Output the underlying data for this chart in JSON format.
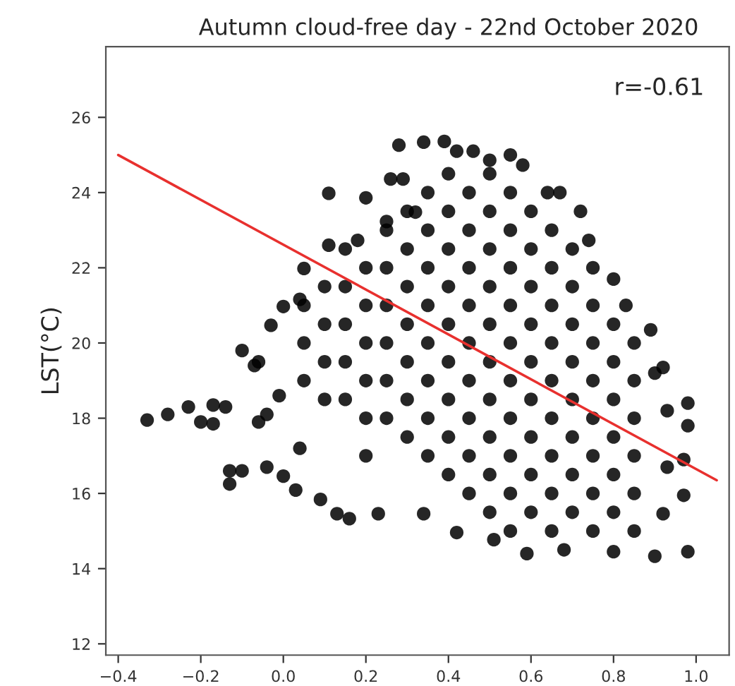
{
  "chart_data": {
    "type": "scatter",
    "title": "Autumn cloud-free day - 22nd October 2020",
    "ylabel": "LST(°C)",
    "annotations": [
      "r=-0.61"
    ],
    "xlim": [
      -0.43,
      1.08
    ],
    "ylim": [
      11.7,
      27.88
    ],
    "xticks": [
      {
        "value": -0.4,
        "label": "−0.4"
      },
      {
        "value": -0.2,
        "label": "−0.2"
      },
      {
        "value": 0,
        "label": "0.0"
      },
      0.2,
      0.4,
      0.6,
      0.8,
      {
        "value": 1,
        "label": "1.0"
      }
    ],
    "yticks": [
      12,
      14,
      16,
      18,
      20,
      22,
      24,
      26
    ],
    "grid": false,
    "series": [
      {
        "color": "#000000",
        "marker": "circle",
        "x": [
          -0.33,
          -0.28,
          -0.23,
          -0.2,
          -0.17,
          -0.17,
          -0.14,
          -0.13,
          -0.13,
          -0.1,
          -0.1,
          -0.07,
          -0.06,
          -0.06,
          -0.04,
          -0.04,
          -0.01,
          0.98,
          0.98,
          0.98,
          0.97,
          0.97,
          0.92,
          0.28,
          0.34,
          0.39,
          0.42,
          0.46,
          0.5,
          0.55,
          0.58,
          0.64,
          0.67,
          0.72,
          0.74,
          0.8,
          0.83,
          0.89,
          0.9,
          0.93,
          0.93,
          0.92,
          0.9,
          0.8,
          0.68,
          0.59,
          0.51,
          0.42,
          0.34,
          0.23,
          0.16,
          0.13,
          0.09,
          0.03,
          0.0,
          0.04,
          -0.03,
          0.0,
          0.04,
          0.05,
          0.11,
          0.11,
          0.2,
          0.26,
          0.29,
          0.18,
          0.25,
          0.32,
          0.05,
          0.05,
          0.05,
          0.1,
          0.1,
          0.1,
          0.1,
          0.15,
          0.15,
          0.15,
          0.15,
          0.15,
          0.2,
          0.2,
          0.2,
          0.2,
          0.2,
          0.2,
          0.25,
          0.25,
          0.25,
          0.25,
          0.25,
          0.25,
          0.3,
          0.3,
          0.3,
          0.3,
          0.3,
          0.3,
          0.3,
          0.35,
          0.35,
          0.35,
          0.35,
          0.35,
          0.35,
          0.35,
          0.35,
          0.4,
          0.4,
          0.4,
          0.4,
          0.4,
          0.4,
          0.4,
          0.4,
          0.4,
          0.45,
          0.45,
          0.45,
          0.45,
          0.45,
          0.45,
          0.45,
          0.45,
          0.45,
          0.5,
          0.5,
          0.5,
          0.5,
          0.5,
          0.5,
          0.5,
          0.5,
          0.5,
          0.5,
          0.55,
          0.55,
          0.55,
          0.55,
          0.55,
          0.55,
          0.55,
          0.55,
          0.55,
          0.55,
          0.6,
          0.6,
          0.6,
          0.6,
          0.6,
          0.6,
          0.6,
          0.6,
          0.6,
          0.65,
          0.65,
          0.65,
          0.65,
          0.65,
          0.65,
          0.65,
          0.65,
          0.65,
          0.7,
          0.7,
          0.7,
          0.7,
          0.7,
          0.7,
          0.7,
          0.7,
          0.75,
          0.75,
          0.75,
          0.75,
          0.75,
          0.75,
          0.75,
          0.75,
          0.8,
          0.8,
          0.8,
          0.8,
          0.8,
          0.8,
          0.85,
          0.85,
          0.85,
          0.85,
          0.85,
          0.85
        ],
        "values": [
          17.95,
          18.1,
          18.3,
          17.9,
          17.85,
          18.35,
          18.3,
          16.6,
          16.25,
          16.6,
          19.8,
          19.4,
          19.5,
          17.9,
          18.1,
          16.7,
          18.6,
          14.45,
          18.4,
          17.8,
          15.95,
          16.9,
          19.35,
          25.26,
          25.34,
          25.36,
          25.1,
          25.1,
          24.86,
          25.0,
          24.73,
          24.0,
          24.0,
          23.5,
          22.73,
          21.7,
          21.0,
          20.35,
          19.2,
          18.2,
          16.7,
          15.46,
          14.33,
          14.45,
          14.5,
          14.4,
          14.77,
          14.96,
          15.46,
          15.46,
          15.33,
          15.46,
          15.84,
          16.09,
          16.46,
          17.2,
          20.47,
          20.97,
          21.16,
          21.98,
          22.6,
          23.98,
          23.86,
          24.36,
          24.36,
          22.73,
          23.23,
          23.48,
          19,
          20,
          21,
          18.5,
          19.5,
          20.5,
          21.5,
          18.5,
          19.5,
          20.5,
          21.5,
          22.5,
          17,
          18,
          19,
          20,
          21,
          22,
          18,
          19,
          20,
          21,
          22,
          23,
          17.5,
          18.5,
          19.5,
          20.5,
          21.5,
          22.5,
          23.5,
          17,
          18,
          19,
          20,
          21,
          22,
          23,
          24,
          16.5,
          17.5,
          18.5,
          19.5,
          20.5,
          21.5,
          22.5,
          23.5,
          24.5,
          16,
          17,
          18,
          19,
          20,
          21,
          22,
          23,
          24,
          15.5,
          16.5,
          17.5,
          18.5,
          19.5,
          20.5,
          21.5,
          22.5,
          23.5,
          24.5,
          15,
          16,
          17,
          18,
          19,
          20,
          21,
          22,
          23,
          24,
          15.5,
          16.5,
          17.5,
          18.5,
          19.5,
          20.5,
          21.5,
          22.5,
          23.5,
          15,
          16,
          17,
          18,
          19,
          20,
          21,
          22,
          23,
          15.5,
          16.5,
          17.5,
          18.5,
          19.5,
          20.5,
          21.5,
          22.5,
          15,
          16,
          17,
          18,
          19,
          20,
          21,
          22,
          15.5,
          16.5,
          17.5,
          18.5,
          19.5,
          20.5,
          15,
          16,
          17,
          18,
          19,
          20
        ]
      },
      {
        "type": "line",
        "color": "#e8302e",
        "x": [
          -0.4,
          1.05
        ],
        "values": [
          25.0,
          16.35
        ]
      }
    ]
  }
}
